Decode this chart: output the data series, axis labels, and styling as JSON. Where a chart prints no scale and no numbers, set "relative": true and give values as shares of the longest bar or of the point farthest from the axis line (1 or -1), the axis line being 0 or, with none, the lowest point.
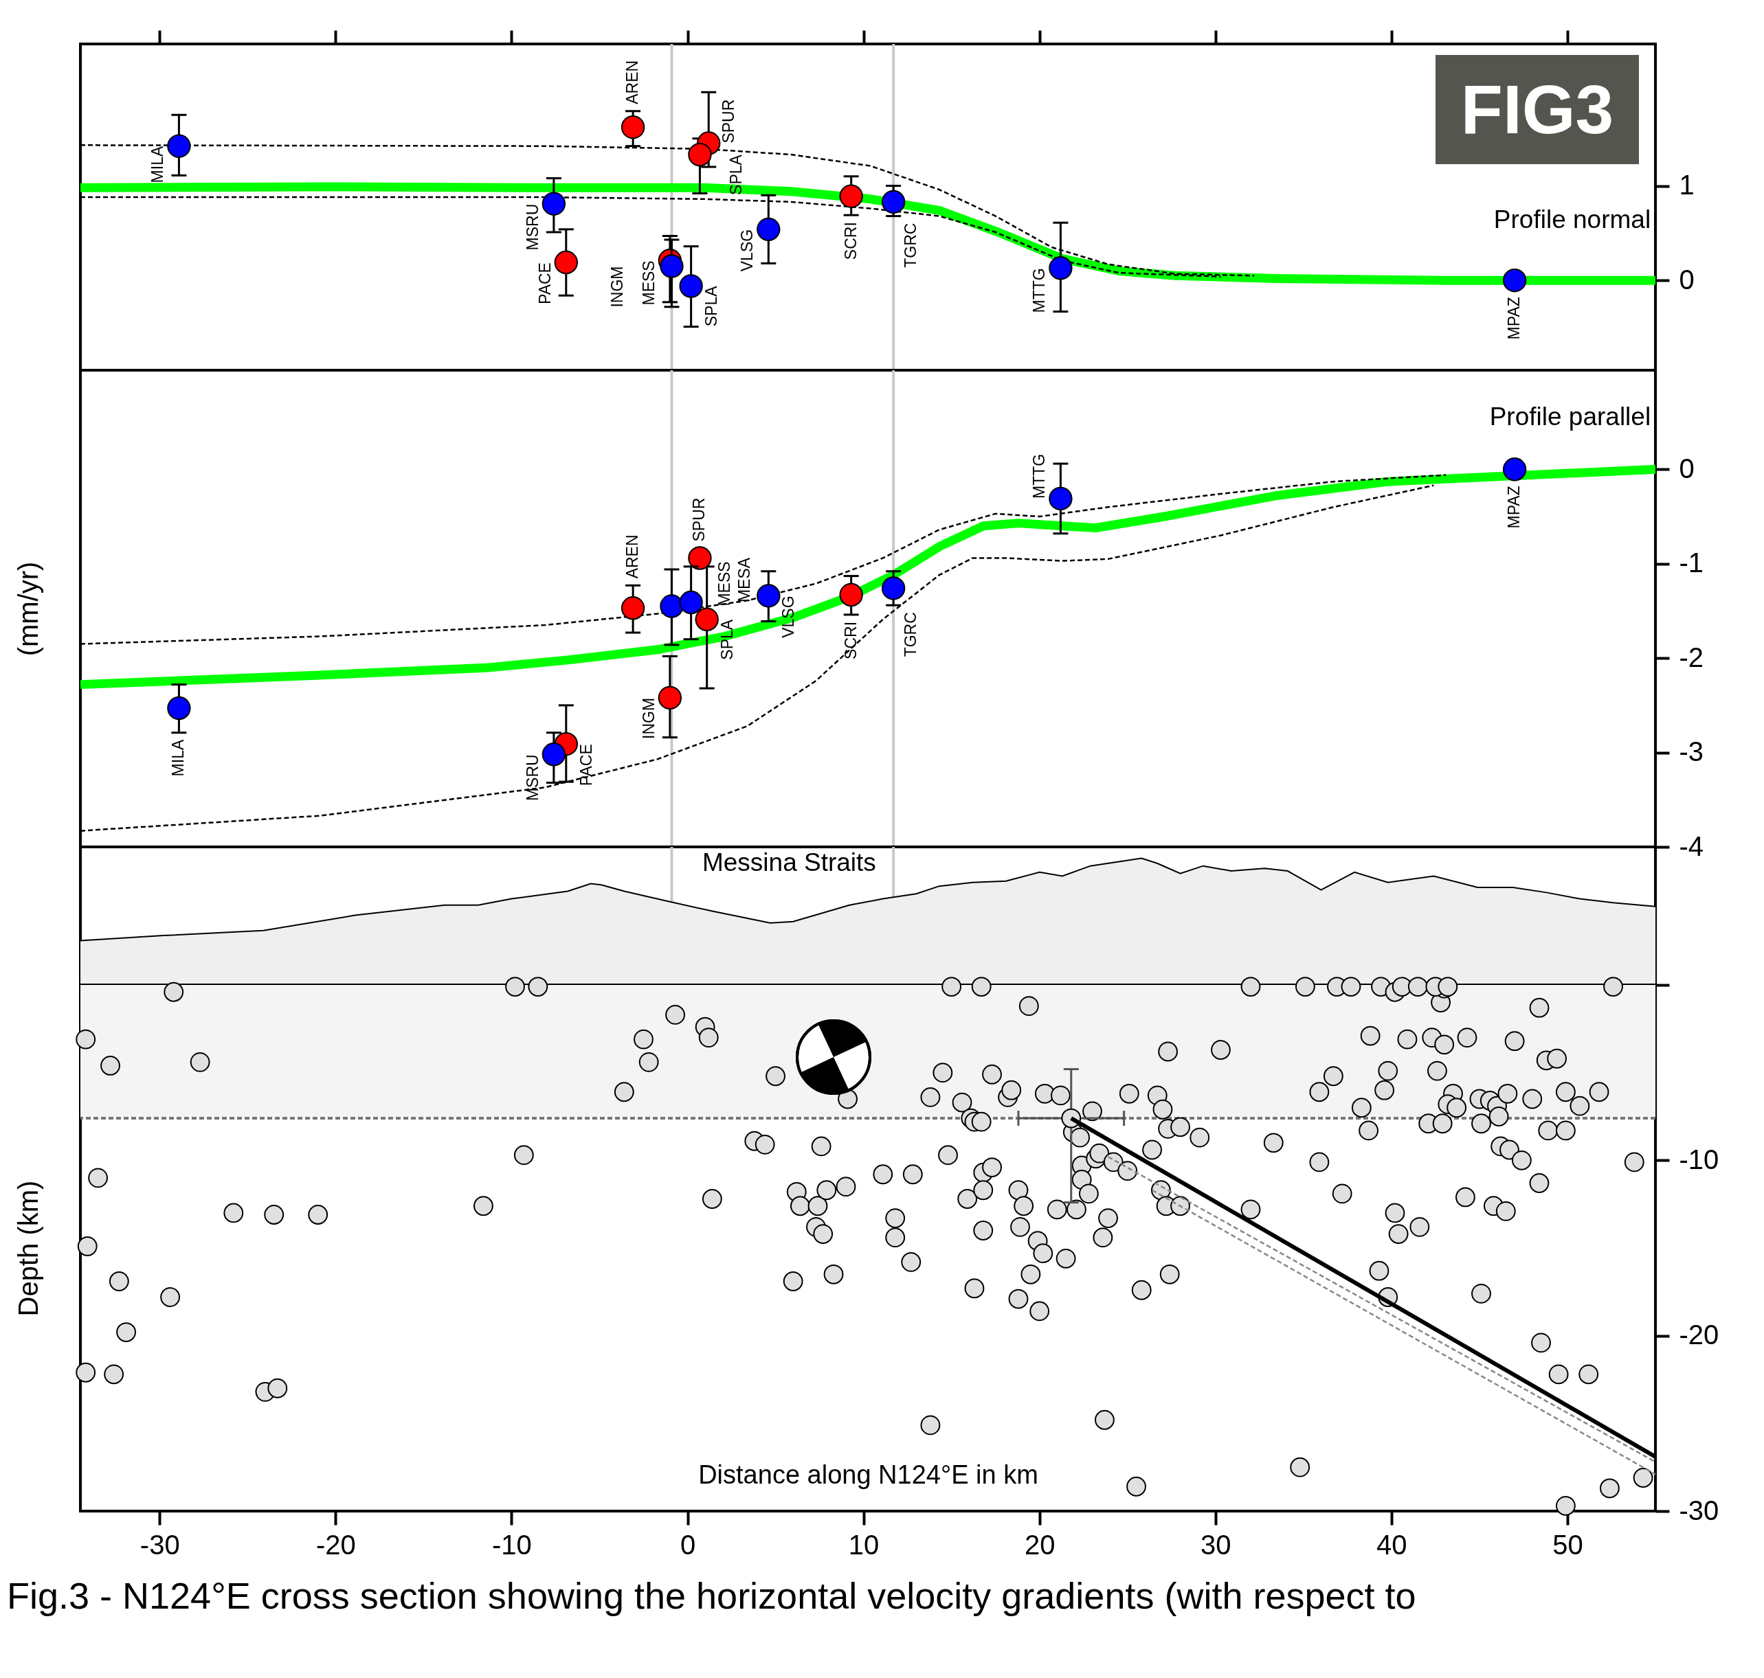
{
  "chart_data": [
    {
      "type": "scatter",
      "xlim": [
        -34.5,
        55
      ],
      "xticks": [
        -30,
        -20,
        -10,
        0,
        10,
        20,
        30,
        40,
        50
      ],
      "ylim": [
        -0.95,
        2.5
      ],
      "yticks": [
        1,
        0
      ],
      "tick_labels": "y",
      "ref_lines": [
        {
          "axis": "x",
          "value": -0.9,
          "color": "#c8c8c8"
        },
        {
          "axis": "x",
          "value": 11.7,
          "color": "#c8c8c8"
        }
      ],
      "annotations": [
        {
          "text": "MILA",
          "x": -28.9,
          "y": 1.42
        },
        {
          "text": "MSRU",
          "x": -7.6,
          "y": 0.81
        },
        {
          "text": "PACE",
          "x": -6.9,
          "y": 0.19
        },
        {
          "text": "AREN",
          "x": -3.1,
          "y": 1.62
        },
        {
          "text": "SPUR",
          "x": 1.2,
          "y": 1.45
        },
        {
          "text": "SPLA",
          "x": 0.7,
          "y": 1.33
        },
        {
          "text": "MESS",
          "x": -1.0,
          "y": 0.21
        },
        {
          "text": "INGM",
          "x": -0.9,
          "y": 0.15
        },
        {
          "text": "SPLA",
          "x": 0.2,
          "y": -0.06
        },
        {
          "text": "VLSG",
          "x": 4.6,
          "y": 0.54
        },
        {
          "text": "SCRI",
          "x": 9.3,
          "y": 0.89
        },
        {
          "text": "TGRC",
          "x": 11.7,
          "y": 0.83
        },
        {
          "text": "MTTG",
          "x": 21.2,
          "y": 0.13
        },
        {
          "text": "MPAZ",
          "x": 47.0,
          "y": 0
        },
        "Profile normal",
        "FIG3"
      ],
      "series": [
        {
          "type": "line",
          "color": "#00ff00",
          "line_style": "solid",
          "x": [
            -34.5,
            -20.9,
            -8.1,
            0.9,
            5.9,
            10.4,
            14.3,
            17.5,
            21.3,
            24.5,
            27.7,
            33.4,
            43.0,
            55
          ],
          "values": [
            0.98,
            0.99,
            0.98,
            0.98,
            0.94,
            0.86,
            0.74,
            0.52,
            0.23,
            0.1,
            0.05,
            0.02,
            0,
            0
          ]
        },
        {
          "type": "line",
          "color": "#000000",
          "line_style": "dashed",
          "x": [
            -34.5,
            -8.1,
            0.9,
            5.9,
            10.4,
            14.3,
            17.5,
            20.7,
            23.9,
            27.7,
            32.2
          ],
          "values": [
            1.43,
            1.42,
            1.39,
            1.33,
            1.21,
            0.96,
            0.68,
            0.35,
            0.17,
            0.07,
            0.05
          ]
        },
        {
          "type": "line",
          "color": "#000000",
          "line_style": "dashed",
          "x": [
            -34.5,
            -8.1,
            0.9,
            5.9,
            10.4,
            14.3,
            17.5,
            21.3,
            24.5,
            30.3
          ],
          "values": [
            0.88,
            0.88,
            0.86,
            0.83,
            0.76,
            0.68,
            0.51,
            0.21,
            0.08,
            0.04
          ]
        },
        {
          "color": "#ff0000",
          "marker": "circle",
          "x": [
            -3.1,
            1.2,
            0.7,
            -6.9,
            -1.0,
            9.3
          ],
          "values": [
            1.62,
            1.45,
            1.33,
            0.19,
            0.21,
            0.89
          ],
          "errors": [
            [
              1.42,
              1.79
            ],
            [
              1.2,
              1.99
            ],
            [
              0.92,
              1.5
            ],
            [
              -0.16,
              0.54
            ],
            [
              -0.23,
              0.47
            ],
            [
              0.69,
              1.1
            ]
          ]
        },
        {
          "color": "#0000ff",
          "marker": "circle",
          "x": [
            -28.9,
            -7.6,
            -0.9,
            0.2,
            4.6,
            11.7,
            21.2,
            47.0
          ],
          "values": [
            1.42,
            0.81,
            0.15,
            -0.06,
            0.54,
            0.83,
            0.13,
            0
          ],
          "errors": [
            [
              1.11,
              1.75
            ],
            [
              0.51,
              1.08
            ],
            [
              -0.28,
              0.43
            ],
            [
              -0.49,
              0.36
            ],
            [
              0.18,
              0.9
            ],
            [
              0.68,
              1.0
            ],
            [
              -0.33,
              0.61
            ],
            null
          ]
        }
      ]
    },
    {
      "type": "scatter",
      "ylabel": "(mm/yr)",
      "xlim": [
        -34.5,
        55
      ],
      "xticks": [
        -30,
        -20,
        -10,
        0,
        10,
        20,
        30,
        40,
        50
      ],
      "ylim": [
        -4,
        1.05
      ],
      "yticks": [
        0,
        -1,
        -2,
        -3,
        -4
      ],
      "tick_labels": "y",
      "ref_lines": [
        {
          "axis": "x",
          "value": -0.9,
          "color": "#c8c8c8"
        },
        {
          "axis": "x",
          "value": 11.7,
          "color": "#c8c8c8"
        }
      ],
      "annotations": [
        {
          "text": "AREN",
          "x": -3.1,
          "y": -1.47
        },
        {
          "text": "MESS",
          "x": -0.9,
          "y": -1.45
        },
        {
          "text": "MESA",
          "x": 0.2,
          "y": -1.41
        },
        {
          "text": "SPUR",
          "x": 0.7,
          "y": -0.94
        },
        {
          "text": "VLSG",
          "x": 4.6,
          "y": -1.34
        },
        {
          "text": "MILA",
          "x": -28.9,
          "y": -2.53
        },
        {
          "text": "MSRU",
          "x": -7.6,
          "y": -3.02
        },
        {
          "text": "PACE",
          "x": -6.9,
          "y": -2.91
        },
        {
          "text": "INGM",
          "x": -1.0,
          "y": -2.42
        },
        {
          "text": "SPLA",
          "x": 1.1,
          "y": -1.59
        },
        {
          "text": "SCRI",
          "x": 9.3,
          "y": -1.33
        },
        {
          "text": "TGRC",
          "x": 11.7,
          "y": -1.26
        },
        {
          "text": "MTTG",
          "x": 21.2,
          "y": -0.31
        },
        {
          "text": "MPAZ",
          "x": 47.0,
          "y": 0
        },
        "Profile parallel"
      ],
      "series": [
        {
          "type": "line",
          "color": "#00ff00",
          "line_style": "solid",
          "x": [
            -34.5,
            -20.9,
            -11.3,
            -6.8,
            -1.7,
            2.1,
            6.0,
            9.2,
            11.7,
            14.3,
            16.8,
            18.8,
            21.3,
            23.2,
            27.1,
            33.4,
            39.8,
            55
          ],
          "values": [
            -2.28,
            -2.18,
            -2.1,
            -2.02,
            -1.91,
            -1.77,
            -1.57,
            -1.35,
            -1.12,
            -0.82,
            -0.6,
            -0.57,
            -0.6,
            -0.62,
            -0.5,
            -0.28,
            -0.13,
            0
          ]
        },
        {
          "type": "line",
          "color": "#000000",
          "line_style": "dashed",
          "x": [
            -34.5,
            -20.9,
            -8.1,
            -1.7,
            3.4,
            7.3,
            11.1,
            14.3,
            17.5,
            20.0,
            23.9,
            30.3,
            36.7,
            43.1
          ],
          "values": [
            -1.85,
            -1.77,
            -1.65,
            -1.53,
            -1.39,
            -1.21,
            -0.94,
            -0.64,
            -0.47,
            -0.5,
            -0.4,
            -0.26,
            -0.13,
            -0.06
          ]
        },
        {
          "type": "line",
          "color": "#000000",
          "line_style": "dashed",
          "x": [
            -34.5,
            -20.9,
            -8.1,
            -1.7,
            3.4,
            7.3,
            11.1,
            14.3,
            16.2,
            18.1,
            21.3,
            23.9,
            30.3,
            36.7,
            42.4
          ],
          "values": [
            -3.83,
            -3.67,
            -3.37,
            -3.07,
            -2.72,
            -2.24,
            -1.59,
            -1.12,
            -0.94,
            -0.94,
            -0.97,
            -0.95,
            -0.7,
            -0.4,
            -0.17
          ]
        },
        {
          "color": "#ff0000",
          "marker": "circle",
          "x": [
            -3.1,
            0.7,
            1.1,
            -6.9,
            -1.0,
            9.3
          ],
          "values": [
            -1.47,
            -0.94,
            -1.59,
            -2.91,
            -2.42,
            -1.33
          ],
          "errors": [
            [
              -1.73,
              -1.23
            ],
            null,
            [
              -2.32,
              -1.03
            ],
            [
              -3.31,
              -2.5
            ],
            [
              -2.84,
              -1.98
            ],
            [
              -1.54,
              -1.13
            ]
          ]
        },
        {
          "color": "#0000ff",
          "marker": "circle",
          "x": [
            -28.9,
            -7.6,
            -0.9,
            0.2,
            4.6,
            11.7,
            21.2,
            47.0
          ],
          "values": [
            -2.53,
            -3.02,
            -1.45,
            -1.41,
            -1.34,
            -1.26,
            -0.31,
            0
          ],
          "errors": [
            [
              -2.79,
              -2.28
            ],
            [
              -3.32,
              -2.79
            ],
            [
              -1.86,
              -1.06
            ],
            [
              -1.8,
              -1.03
            ],
            [
              -1.61,
              -1.08
            ],
            [
              -1.44,
              -1.08
            ],
            [
              -0.68,
              0.06
            ],
            null
          ]
        }
      ]
    },
    {
      "type": "area",
      "relative": true,
      "xlim": [
        -34.5,
        55
      ],
      "xticks": [
        -30,
        -20,
        -10,
        0,
        10,
        20,
        30,
        40,
        50
      ],
      "tick_labels": false,
      "ref_lines": [
        {
          "axis": "x",
          "value": -0.9,
          "color": "#c8c8c8"
        },
        {
          "axis": "x",
          "value": 11.7,
          "color": "#c8c8c8"
        }
      ],
      "annotations": [
        "Messina Straits"
      ],
      "x": [
        -34.5,
        -29.8,
        -24.1,
        -18.9,
        -13.8,
        -11.9,
        -10.0,
        -6.8,
        -5.5,
        -4.9,
        -3.6,
        -1.1,
        1.5,
        4.7,
        6.0,
        9.2,
        11.1,
        13.0,
        14.3,
        16.2,
        18.1,
        20.0,
        21.3,
        22.9,
        25.8,
        26.7,
        28.0,
        29.3,
        30.9,
        32.8,
        34.1,
        36.0,
        37.9,
        39.8,
        42.4,
        44.9,
        46.9,
        48.8,
        50.7,
        52.6,
        55
      ],
      "series": [
        {
          "color": "#efefef",
          "values": [
            0.35,
            0.39,
            0.43,
            0.55,
            0.63,
            0.63,
            0.68,
            0.74,
            0.8,
            0.79,
            0.74,
            0.66,
            0.58,
            0.49,
            0.5,
            0.63,
            0.68,
            0.72,
            0.78,
            0.81,
            0.82,
            0.89,
            0.86,
            0.94,
            1.0,
            0.96,
            0.88,
            0.94,
            0.9,
            0.92,
            0.9,
            0.75,
            0.89,
            0.81,
            0.86,
            0.77,
            0.77,
            0.73,
            0.68,
            0.65,
            0.62
          ]
        }
      ]
    },
    {
      "type": "scatter",
      "xlabel": "Distance along N124°E in km",
      "ylabel": "Depth (km)",
      "xlim": [
        -34.5,
        55
      ],
      "xticks": [
        -30,
        -20,
        -10,
        0,
        10,
        20,
        30,
        40,
        50
      ],
      "ylim": [
        -30,
        0
      ],
      "yticks": [
        {
          "value": 0,
          "label": null
        },
        -10,
        -20,
        -30
      ],
      "bands": [
        {
          "axis": "y",
          "from": -7.6,
          "to": 0,
          "color": "#f4f4f4"
        }
      ],
      "ref_lines": [
        {
          "axis": "y",
          "value": -7.6,
          "color": "#777777",
          "line_style": "dashed"
        }
      ],
      "annotations": [
        "Fig.3 - N124°E cross section showing the horizontal velocity gradients (with respect to"
      ],
      "series": [
        {
          "color": "#e0e0e0",
          "marker": "circle",
          "x": [
            -29.2,
            -34.2,
            -32.8,
            -33.5,
            -34.1,
            -32.3,
            -31.9,
            -34.2,
            -32.6,
            -29.4,
            -27.7,
            -25.8,
            -23.5,
            -21.0,
            -24.0,
            -23.3,
            -11.6,
            -9.3,
            -9.8,
            -8.5,
            -3.6,
            -2.5,
            -2.2,
            -0.7,
            1.0,
            1.2,
            3.8,
            4.4,
            1.4,
            5.0,
            7.6,
            9.1,
            6.2,
            6.4,
            7.3,
            7.7,
            7.4,
            7.9,
            9.0,
            6.0,
            8.3,
            11.1,
            11.8,
            11.8,
            12.7,
            12.8,
            13.8,
            14.5,
            14.8,
            15.0,
            15.6,
            15.9,
            16.1,
            16.3,
            16.7,
            16.7,
            16.8,
            16.8,
            16.8,
            16.3,
            17.3,
            17.3,
            18.2,
            18.4,
            18.8,
            19.1,
            18.9,
            19.9,
            20.2,
            19.5,
            18.8,
            20.0,
            19.4,
            20.3,
            21.2,
            21.5,
            21.0,
            21.9,
            22.4,
            22.4,
            22.1,
            22.8,
            23.2,
            23.0,
            22.3,
            23.4,
            24.2,
            25.0,
            23.9,
            23.6,
            25.1,
            25.8,
            26.4,
            26.7,
            27.0,
            27.3,
            27.3,
            28.0,
            26.9,
            27.2,
            28.0,
            27.4,
            29.1,
            30.3,
            32.0,
            32.0,
            33.3,
            35.1,
            35.9,
            36.7,
            36.9,
            37.7,
            35.9,
            37.2,
            38.7,
            38.3,
            38.8,
            39.4,
            39.6,
            39.8,
            40.2,
            40.6,
            40.9,
            41.5,
            42.1,
            42.3,
            42.6,
            42.8,
            43.0,
            42.9,
            43.0,
            43.5,
            43.2,
            43.7,
            44.3,
            44.2,
            45.0,
            45.1,
            45.6,
            46.0,
            46.2,
            46.1,
            46.7,
            46.6,
            47.0,
            47.4,
            48.0,
            48.4,
            48.4,
            48.8,
            49.4,
            48.9,
            49.9,
            49.9,
            50.7,
            51.8,
            52.6,
            53.8,
            41.6,
            40.2,
            40.4,
            39.3,
            39.8,
            45.1,
            45.8,
            46.5,
            48.5,
            49.5,
            51.2,
            34.8,
            25.5,
            23.7,
            13.8,
            49.9,
            52.4,
            54.3,
            42.5,
            43.2
          ],
          "values": [
            -0.4,
            -3.1,
            -4.6,
            -11.0,
            -14.9,
            -16.9,
            -19.8,
            -22.1,
            -22.2,
            -17.8,
            -4.4,
            -13.0,
            -13.1,
            -13.1,
            -23.2,
            -23.0,
            -12.6,
            -9.7,
            -0.1,
            -0.1,
            -6.1,
            -3.1,
            -4.4,
            -1.7,
            -2.4,
            -3.0,
            -8.9,
            -9.1,
            -12.2,
            -5.2,
            -9.2,
            -6.5,
            -11.8,
            -12.6,
            -13.8,
            -14.2,
            -12.6,
            -11.7,
            -11.5,
            -16.9,
            -16.5,
            -10.8,
            -13.3,
            -14.4,
            -15.8,
            -10.8,
            -6.4,
            -5.0,
            -9.7,
            -0.1,
            -6.7,
            -12.2,
            -7.6,
            -7.8,
            -7.8,
            -0.1,
            -10.7,
            -11.7,
            -14.0,
            -17.3,
            -5.1,
            -10.4,
            -6.4,
            -6.0,
            -11.7,
            -12.6,
            -13.8,
            -14.6,
            -15.3,
            -16.5,
            -17.9,
            -18.6,
            -1.2,
            -6.2,
            -6.3,
            -15.6,
            -12.8,
            -8.4,
            -10.3,
            -11.1,
            -12.8,
            -11.9,
            -9.9,
            -7.2,
            -8.7,
            -9.6,
            -10.1,
            -10.6,
            -13.3,
            -14.4,
            -6.2,
            -17.4,
            -9.4,
            -6.3,
            -7.1,
            -3.8,
            -8.2,
            -8.1,
            -11.7,
            -12.6,
            -12.6,
            -16.5,
            -8.7,
            -3.7,
            -0.1,
            -12.8,
            -9.0,
            -0.1,
            -6.1,
            -5.2,
            -0.1,
            -0.1,
            -10.1,
            -11.9,
            -8.3,
            -7.0,
            -2.9,
            -0.1,
            -6.0,
            -4.9,
            -0.4,
            -0.1,
            -3.1,
            -0.1,
            -7.9,
            -3.0,
            -4.9,
            -1.0,
            -0.2,
            -7.9,
            -3.4,
            -6.2,
            -6.8,
            -7.0,
            -3.0,
            -12.1,
            -6.5,
            -7.9,
            -6.6,
            -6.9,
            -9.2,
            -7.5,
            -9.4,
            -6.2,
            -3.2,
            -10.0,
            -6.5,
            -1.3,
            -11.3,
            -4.3,
            -4.2,
            -8.3,
            -8.3,
            -6.1,
            -6.9,
            -6.1,
            -0.1,
            -10.1,
            -13.8,
            -13.0,
            -14.2,
            -16.3,
            -17.8,
            -17.6,
            -12.6,
            -12.9,
            -20.4,
            -22.2,
            -22.2,
            -27.5,
            -28.6,
            -24.8,
            -25.1,
            -29.7,
            -28.7,
            -28.1,
            -0.1,
            -0.1
          ]
        },
        {
          "color": "#e0e0e0",
          "marker": "circle",
          "x": [
            21.8
          ],
          "values": [
            -7.6
          ],
          "errors": [
            [
              -12.4,
              -4.8
            ]
          ],
          "xerrors": [
            [
              18.8,
              24.8
            ]
          ]
        },
        {
          "type": "line",
          "color": "#888888",
          "line_style": "dashed",
          "x": [
            23.9,
            55
          ],
          "values": [
            -9.8,
            -27.2
          ]
        },
        {
          "type": "line",
          "color": "#888888",
          "line_style": "dashed",
          "x": [
            26.4,
            55
          ],
          "values": [
            -11.7,
            -27.9
          ]
        },
        {
          "type": "line",
          "color": "#000000",
          "line_style": "solid",
          "x": [
            21.8,
            55
          ],
          "values": [
            -7.6,
            -26.9
          ]
        }
      ]
    }
  ]
}
